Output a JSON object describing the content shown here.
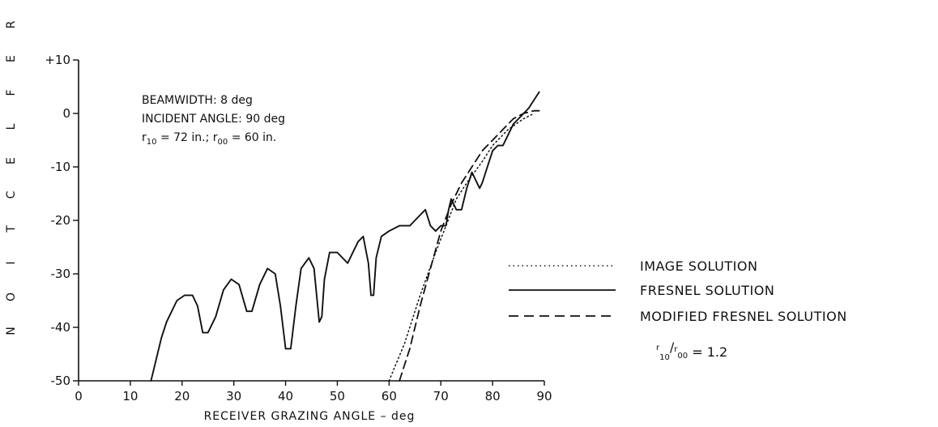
{
  "chart_data": {
    "type": "line",
    "title": "",
    "xlabel": "RECEIVER GRAZING ANGLE – deg",
    "ylabel": "REFLECTION",
    "xlim": [
      0,
      90
    ],
    "ylim": [
      -50,
      10
    ],
    "x_ticks": [
      "0",
      "10",
      "20",
      "30",
      "40",
      "50",
      "60",
      "70",
      "80",
      "90"
    ],
    "y_ticks": [
      "-50",
      "-40",
      "-30",
      "-20",
      "-10",
      "0",
      "+10"
    ],
    "annotations": {
      "beamwidth": "BEAMWIDTH:  8 deg",
      "incident_angle": "INCIDENT ANGLE:  90 deg",
      "r10_prefix": "r",
      "r10_sub": "10",
      "r10_mid": " = 72 in.; r",
      "r00_sub": "00",
      "r00_suffix": " = 60 in."
    },
    "ratio": {
      "r_prefix": "r",
      "r10_sub": "10",
      "slash": "/",
      "r_mid": "r",
      "r00_sub": "00",
      "value": " = 1.2"
    },
    "series": [
      {
        "name": "IMAGE SOLUTION",
        "style": "dotted",
        "points": [
          [
            60,
            -50
          ],
          [
            63,
            -43
          ],
          [
            66,
            -34
          ],
          [
            69,
            -26
          ],
          [
            71,
            -21
          ],
          [
            73,
            -16
          ],
          [
            75,
            -13
          ],
          [
            78,
            -9
          ],
          [
            80,
            -6
          ],
          [
            83,
            -3
          ],
          [
            86,
            -1
          ],
          [
            88,
            0
          ]
        ]
      },
      {
        "name": "FRESNEL SOLUTION",
        "style": "solid",
        "points": [
          [
            14,
            -50
          ],
          [
            15,
            -46
          ],
          [
            16,
            -42
          ],
          [
            17,
            -39
          ],
          [
            18,
            -37
          ],
          [
            19,
            -35
          ],
          [
            20.5,
            -34
          ],
          [
            22,
            -34
          ],
          [
            23,
            -36
          ],
          [
            24,
            -41
          ],
          [
            25,
            -41
          ],
          [
            26.5,
            -38
          ],
          [
            28,
            -33
          ],
          [
            29.5,
            -31
          ],
          [
            31,
            -32
          ],
          [
            32.5,
            -37
          ],
          [
            33.5,
            -37
          ],
          [
            35,
            -32
          ],
          [
            36.5,
            -29
          ],
          [
            38,
            -30
          ],
          [
            39,
            -36
          ],
          [
            40,
            -44
          ],
          [
            41,
            -44
          ],
          [
            42,
            -36
          ],
          [
            43,
            -29
          ],
          [
            44.5,
            -27
          ],
          [
            45.5,
            -29
          ],
          [
            46,
            -34
          ],
          [
            46.5,
            -39
          ],
          [
            47,
            -38
          ],
          [
            47.5,
            -31
          ],
          [
            48.5,
            -26
          ],
          [
            50,
            -26
          ],
          [
            51.5,
            -27.5
          ],
          [
            52,
            -28
          ],
          [
            53,
            -26
          ],
          [
            54,
            -24
          ],
          [
            55,
            -23
          ],
          [
            56,
            -28
          ],
          [
            56.5,
            -34
          ],
          [
            57,
            -34
          ],
          [
            57.5,
            -27
          ],
          [
            58.5,
            -23
          ],
          [
            60,
            -22
          ],
          [
            62,
            -21
          ],
          [
            64,
            -21
          ],
          [
            66,
            -19
          ],
          [
            67,
            -18
          ],
          [
            68,
            -21
          ],
          [
            69,
            -22
          ],
          [
            70,
            -21
          ],
          [
            71,
            -21
          ],
          [
            71.5,
            -18
          ],
          [
            72,
            -16
          ],
          [
            73,
            -18
          ],
          [
            74,
            -18
          ],
          [
            75,
            -14
          ],
          [
            76,
            -11
          ],
          [
            76.5,
            -12
          ],
          [
            77.5,
            -14
          ],
          [
            78,
            -13
          ],
          [
            79,
            -10
          ],
          [
            80,
            -7
          ],
          [
            81,
            -6
          ],
          [
            82,
            -6
          ],
          [
            83,
            -4
          ],
          [
            84,
            -2
          ],
          [
            85,
            -1
          ],
          [
            86,
            0
          ],
          [
            87,
            1
          ],
          [
            88,
            2.5
          ],
          [
            89,
            4
          ]
        ]
      },
      {
        "name": "MODIFIED FRESNEL SOLUTION",
        "style": "dashed",
        "points": [
          [
            62,
            -50
          ],
          [
            64,
            -44
          ],
          [
            66,
            -36
          ],
          [
            68,
            -29
          ],
          [
            70,
            -22
          ],
          [
            72,
            -17
          ],
          [
            74,
            -13
          ],
          [
            76,
            -10
          ],
          [
            78,
            -7
          ],
          [
            80,
            -5
          ],
          [
            82,
            -3
          ],
          [
            84,
            -1
          ],
          [
            86,
            0
          ],
          [
            88,
            0.5
          ],
          [
            89,
            0.5
          ]
        ]
      }
    ]
  }
}
